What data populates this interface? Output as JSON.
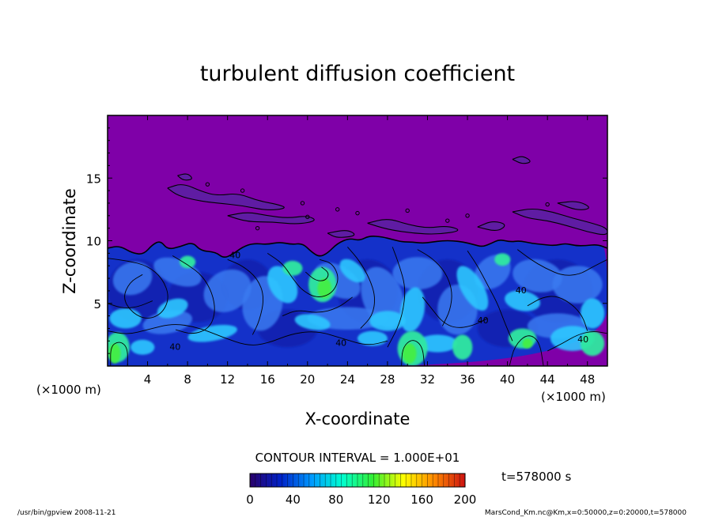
{
  "chart_data": {
    "type": "heatmap",
    "title": "turbulent diffusion coefficient",
    "xlabel": "X-coordinate",
    "ylabel": "Z-coordinate",
    "x_unit_left": "(×1000 m)",
    "x_unit_right": "(×1000 m)",
    "xlim": [
      0,
      50
    ],
    "ylim": [
      0,
      20
    ],
    "x_ticks": [
      4,
      8,
      12,
      16,
      20,
      24,
      28,
      32,
      36,
      40,
      44,
      48
    ],
    "y_ticks": [
      5,
      10,
      15
    ],
    "contour_interval_text": "CONTOUR INTERVAL = 1.000E+01",
    "contour_labels": [
      "40",
      "40",
      "40",
      "40",
      "40",
      "40"
    ],
    "colorbar": {
      "range": [
        0,
        200
      ],
      "ticks": [
        0,
        40,
        80,
        120,
        160,
        200
      ],
      "colors": [
        "#2a006a",
        "#0022c8",
        "#0099ff",
        "#00ffd0",
        "#33ee33",
        "#ffff00",
        "#ff8800",
        "#cc1111"
      ]
    },
    "background_color": "#7f00a8",
    "time_label": "t=578000 s",
    "footer_left": "/usr/bin/gpview   2008-11-21",
    "footer_right": "MarsCond_Km.nc@Km,x=0:50000,z=0:20000,t=578000"
  }
}
